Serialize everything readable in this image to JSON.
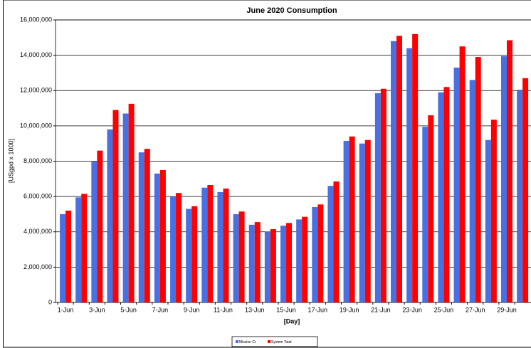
{
  "chart_data": {
    "type": "bar",
    "title": "June 2020 Consumption",
    "x_label": "[Day]",
    "y_label": "[USgpd x 1000]",
    "categories": [
      "1-Jun",
      null,
      "3-Jun",
      null,
      "5-Jun",
      null,
      "7-Jun",
      null,
      "9-Jun",
      null,
      "11-Jun",
      null,
      "13-Jun",
      null,
      "15-Jun",
      null,
      "17-Jun",
      null,
      "19-Jun",
      null,
      "21-Jun",
      null,
      "23-Jun",
      null,
      "25-Jun",
      null,
      "27-Jun",
      null,
      "29-Jun",
      null
    ],
    "series": [
      {
        "name": "Mission Cr",
        "color": "#4a6fe0",
        "values": [
          5000000,
          5950000,
          8000000,
          9800000,
          10700000,
          8500000,
          7300000,
          6000000,
          5300000,
          6500000,
          6250000,
          5000000,
          4400000,
          4000000,
          4350000,
          4700000,
          5400000,
          6600000,
          9150000,
          9000000,
          11850000,
          14800000,
          14400000,
          9950000,
          11900000,
          13300000,
          12600000,
          9200000,
          13950000,
          12050000
        ]
      },
      {
        "name": "System Total",
        "color": "#ff0000",
        "values": [
          5200000,
          6150000,
          8600000,
          10900000,
          11250000,
          8700000,
          7500000,
          6200000,
          5450000,
          6650000,
          6450000,
          5150000,
          4550000,
          4150000,
          4500000,
          4850000,
          5550000,
          6850000,
          9400000,
          9200000,
          12100000,
          15100000,
          15200000,
          10600000,
          12200000,
          14500000,
          13900000,
          10350000,
          14850000,
          12700000
        ]
      }
    ],
    "ylim": [
      0,
      16000000
    ],
    "yticks": [
      0,
      {
        "value": 2000000,
        "label": "2,000,000"
      },
      {
        "value": 4000000,
        "label": "4,000,000"
      },
      {
        "value": 6000000,
        "label": "6,000,000"
      },
      {
        "value": 8000000,
        "label": "8,000,000"
      },
      {
        "value": 10000000,
        "label": "10,000,000"
      },
      {
        "value": 12000000,
        "label": "12,000,000"
      },
      {
        "value": 14000000,
        "label": "14,000,000"
      },
      {
        "value": 16000000,
        "label": "16,000,000"
      }
    ],
    "grid": true
  }
}
